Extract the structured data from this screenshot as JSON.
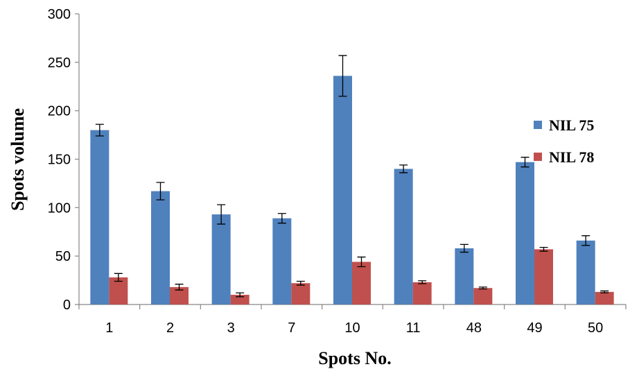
{
  "chart_data": {
    "type": "bar",
    "title": "",
    "xlabel": "Spots No.",
    "ylabel": "Spots volume",
    "ylim": [
      0,
      300
    ],
    "yticks": [
      0,
      50,
      100,
      150,
      200,
      250,
      300
    ],
    "grid": false,
    "legend_position": "right",
    "categories": [
      "1",
      "2",
      "3",
      "7",
      "10",
      "11",
      "48",
      "49",
      "50"
    ],
    "series": [
      {
        "name": "NIL 75",
        "color": "#4f81bd",
        "values": [
          180,
          117,
          93,
          89,
          236,
          140,
          58,
          147,
          66
        ],
        "errors": [
          6,
          9,
          10,
          5,
          21,
          4,
          4,
          5,
          5
        ]
      },
      {
        "name": "NIL 78",
        "color": "#c0504d",
        "values": [
          28,
          18,
          10,
          22,
          44,
          23,
          17,
          57,
          13
        ],
        "errors": [
          4,
          3,
          2,
          2,
          5,
          1.5,
          1,
          2,
          1
        ]
      }
    ]
  }
}
